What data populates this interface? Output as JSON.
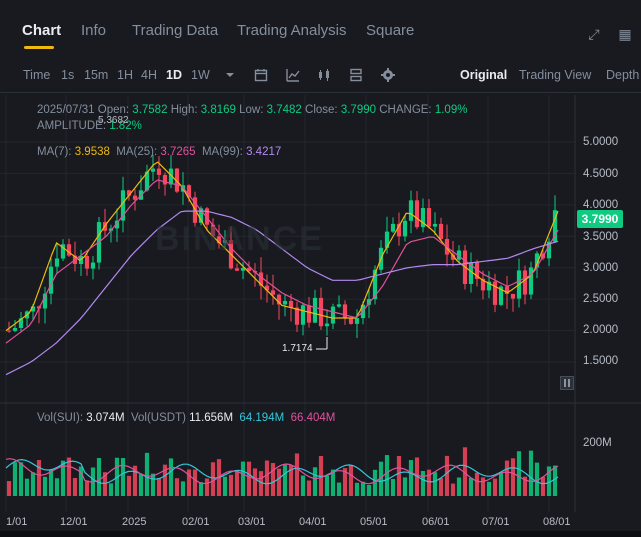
{
  "tabs": [
    {
      "label": "Chart"
    },
    {
      "label": "Info"
    },
    {
      "label": "Trading Data"
    },
    {
      "label": "Trading Analysis"
    },
    {
      "label": "Square"
    }
  ],
  "toolbar": {
    "intervals": [
      "Time",
      "1s",
      "15m",
      "1H",
      "4H",
      "1D",
      "1W"
    ],
    "selected_interval": "1D",
    "views": [
      "Original",
      "Trading View",
      "Depth"
    ],
    "selected_view": "Original"
  },
  "ohlc": {
    "date": "2025/07/31",
    "open_label": "Open:",
    "open": "3.7582",
    "high_label": "High:",
    "high": "3.8169",
    "low_label": "Low:",
    "low": "3.7482",
    "close_label": "Close:",
    "close": "3.7990",
    "change_label": "CHANGE:",
    "change": "1.09%",
    "amplitude_label": "AMPLITUDE:",
    "amplitude": "1.82%"
  },
  "ma": {
    "ma7_label": "MA(7):",
    "ma7": "3.9538",
    "ma25_label": "MA(25):",
    "ma25": "3.7265",
    "ma99_label": "MA(99):",
    "ma99": "3.4217"
  },
  "volume": {
    "vol_label": "Vol(SUI):",
    "vol": "3.074M",
    "vol_usdt_label": "Vol(USDT)",
    "vol_usdt": "11.656M",
    "ma5": "64.194M",
    "ma10": "66.404M",
    "axis_label": "200M"
  },
  "price_axis": [
    "5.0000",
    "4.5000",
    "4.0000",
    "3.5000",
    "3.0000",
    "2.5000",
    "2.0000",
    "1.5000"
  ],
  "last_price": "3.7990",
  "annotations": {
    "high_mark": "5.3682",
    "low_mark": "1.7174"
  },
  "date_axis": [
    "1/01",
    "12/01",
    "2025",
    "02/01",
    "03/01",
    "04/01",
    "05/01",
    "06/01",
    "07/01",
    "08/01"
  ],
  "watermark": "BINANCE",
  "colors": {
    "up": "#0ecb81",
    "down": "#f6465d",
    "ma7": "#f0b90b",
    "ma25": "#e0529c",
    "ma99": "#b389f0",
    "accent": "#f0b90b"
  },
  "chart_data": {
    "type": "candlestick",
    "price_range": [
      1.0,
      5.5
    ],
    "ma_series": [
      {
        "name": "MA(7)",
        "values": [
          2.0,
          2.3,
          3.4,
          3.1,
          3.7,
          4.2,
          4.7,
          4.3,
          3.6,
          3.2,
          2.8,
          2.4,
          2.3,
          2.2,
          2.2,
          3.2,
          3.9,
          3.6,
          3.1,
          2.8,
          2.6,
          2.9,
          3.9
        ]
      },
      {
        "name": "MA(25)",
        "values": [
          1.8,
          2.1,
          2.9,
          3.2,
          3.5,
          4.0,
          4.4,
          4.3,
          3.8,
          3.3,
          2.9,
          2.6,
          2.4,
          2.3,
          2.2,
          2.7,
          3.4,
          3.5,
          3.2,
          2.9,
          2.7,
          2.9,
          3.6
        ]
      },
      {
        "name": "MA(99)",
        "values": [
          1.3,
          1.5,
          1.8,
          2.2,
          2.7,
          3.2,
          3.6,
          3.9,
          3.9,
          3.8,
          3.6,
          3.3,
          3.0,
          2.8,
          2.8,
          2.9,
          3.0,
          3.05,
          3.05,
          3.1,
          3.15,
          3.3,
          3.42
        ]
      }
    ]
  }
}
